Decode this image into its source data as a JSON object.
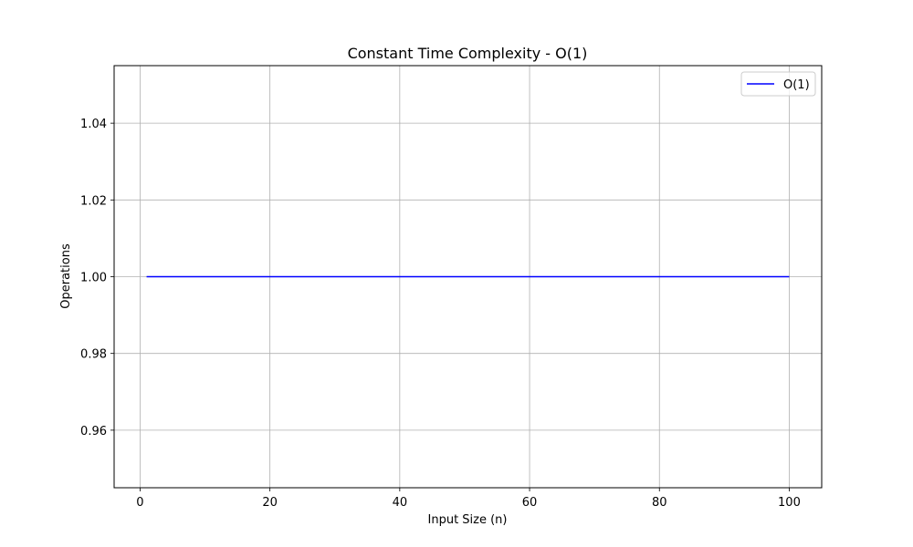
{
  "chart_data": {
    "type": "line",
    "title": "Constant Time Complexity - O(1)",
    "xlabel": "Input Size (n)",
    "ylabel": "Operations",
    "xlim": [
      -4.0,
      105.0
    ],
    "ylim": [
      0.945,
      1.055
    ],
    "xticks": [
      0,
      20,
      40,
      60,
      80,
      100
    ],
    "xtick_labels": [
      "0",
      "20",
      "40",
      "60",
      "80",
      "100"
    ],
    "yticks": [
      0.96,
      0.98,
      1.0,
      1.02,
      1.04
    ],
    "ytick_labels": [
      "0.96",
      "0.98",
      "1.00",
      "1.02",
      "1.04"
    ],
    "grid": true,
    "legend_position": "top-right",
    "series": [
      {
        "name": "O(1)",
        "color": "#0000ff",
        "x": [
          1,
          100
        ],
        "y": [
          1.0,
          1.0
        ]
      }
    ]
  }
}
